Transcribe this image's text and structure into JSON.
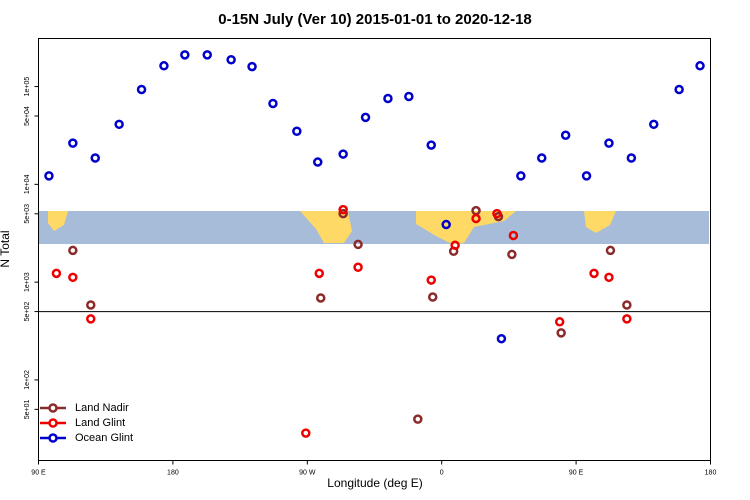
{
  "chart_data": {
    "type": "scatter",
    "title": "0-15N July (Ver 10)   2015-01-01 to 2020-12-18",
    "x_label": "Longitude (deg E)",
    "y_label": "N Total",
    "log_y": true,
    "hline": 500,
    "legend": "bottom-left",
    "xlim": [
      90,
      540
    ],
    "xticks": [
      {
        "value": 90,
        "label": "90 E"
      },
      {
        "value": 180,
        "label": "180"
      },
      {
        "value": 270,
        "label": "90 W"
      },
      {
        "value": 360,
        "label": "0"
      },
      {
        "value": 450,
        "label": "90 E"
      },
      {
        "value": 540,
        "label": "180"
      }
    ],
    "ylim": [
      15,
      310000
    ],
    "yticks": [
      {
        "value": 50,
        "label": "5e+01"
      },
      {
        "value": 100,
        "label": "1e+02"
      },
      {
        "value": 500,
        "label": "5e+02"
      },
      {
        "value": 1000,
        "label": "1e+03"
      },
      {
        "value": 5000,
        "label": "5e+03"
      },
      {
        "value": 10000,
        "label": "1e+04"
      },
      {
        "value": 50000,
        "label": "5e+04"
      },
      {
        "value": 100000,
        "label": "1e+05"
      }
    ],
    "series": [
      {
        "name": "Land Nadir",
        "color": "#8b2a2a",
        "x": [
          113,
          125,
          279,
          294,
          304,
          344,
          354,
          368,
          383,
          398,
          407,
          440,
          473,
          484
        ],
        "values": [
          2110,
          584,
          689,
          5020,
          2430,
          39.7,
          704,
          2070,
          5380,
          4680,
          1920,
          303,
          2110,
          584
        ]
      },
      {
        "name": "Land Glint",
        "color": "#ee0000",
        "x": [
          102,
          113,
          125,
          269,
          278,
          294,
          304,
          353,
          369,
          383,
          397,
          408,
          439,
          462,
          472,
          484
        ],
        "values": [
          1230,
          1120,
          421,
          28.6,
          1230,
          5510,
          1420,
          1050,
          2380,
          4470,
          5020,
          3000,
          393,
          1230,
          1120,
          421
        ]
      },
      {
        "name": "Ocean Glint",
        "color": "#0000cc",
        "x": [
          97,
          113,
          128,
          144,
          159,
          174,
          188,
          203,
          219,
          233,
          247,
          263,
          277,
          294,
          309,
          324,
          338,
          353,
          363,
          400,
          413,
          427,
          443,
          457,
          472,
          487,
          502,
          519,
          533
        ],
        "values": [
          12200,
          26400,
          18600,
          41100,
          93300,
          163000,
          211000,
          211000,
          188000,
          160000,
          67100,
          34900,
          16900,
          20400,
          48400,
          75500,
          79100,
          25200,
          3880,
          264,
          12200,
          18600,
          31800,
          12200,
          26400,
          18600,
          41100,
          93300,
          163000
        ]
      }
    ]
  }
}
